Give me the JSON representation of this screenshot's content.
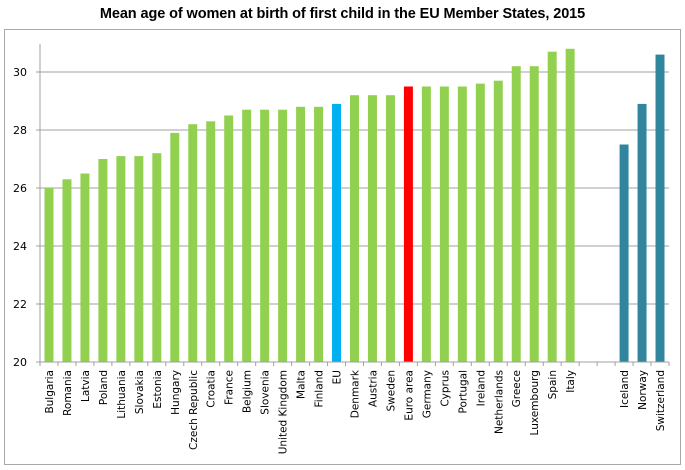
{
  "chart_data": {
    "type": "bar",
    "title": "Mean age of women at birth of first child in the EU Member States, 2015",
    "xlabel": "",
    "ylabel": "",
    "ylim": [
      20,
      31
    ],
    "yticks": [
      20,
      22,
      24,
      26,
      28,
      30
    ],
    "grid": true,
    "legend": "none",
    "colors": {
      "member_state": "#92d050",
      "eu": "#00b0f0",
      "euro_area": "#ff0000",
      "efta": "#31859c",
      "grid": "#a0a0a0",
      "axis": "#a0a0a0"
    },
    "categories": [
      "Bulgaria",
      "Romania",
      "Latvia",
      "Poland",
      "Lithuania",
      "Slovakia",
      "Estonia",
      "Hungary",
      "Czech Republic",
      "Croatia",
      "France",
      "Belgium",
      "Slovenia",
      "United Kingdom",
      "Malta",
      "Finland",
      "EU",
      "Denmark",
      "Austria",
      "Sweden",
      "Euro area",
      "Germany",
      "Cyprus",
      "Portugal",
      "Ireland",
      "Netherlands",
      "Greece",
      "Luxembourg",
      "Spain",
      "Italy",
      "",
      "Iceland",
      "Norway",
      "Switzerland"
    ],
    "values": [
      26.0,
      26.3,
      26.5,
      27.0,
      27.1,
      27.1,
      27.2,
      27.9,
      28.2,
      28.3,
      28.5,
      28.7,
      28.7,
      28.7,
      28.8,
      28.8,
      28.9,
      29.2,
      29.2,
      29.2,
      29.5,
      29.5,
      29.5,
      29.5,
      29.6,
      29.7,
      30.2,
      30.2,
      30.7,
      30.8,
      null,
      27.5,
      28.9,
      30.6
    ],
    "groups": [
      "member_state",
      "member_state",
      "member_state",
      "member_state",
      "member_state",
      "member_state",
      "member_state",
      "member_state",
      "member_state",
      "member_state",
      "member_state",
      "member_state",
      "member_state",
      "member_state",
      "member_state",
      "member_state",
      "eu",
      "member_state",
      "member_state",
      "member_state",
      "euro_area",
      "member_state",
      "member_state",
      "member_state",
      "member_state",
      "member_state",
      "member_state",
      "member_state",
      "member_state",
      "member_state",
      "gap",
      "efta",
      "efta",
      "efta"
    ]
  }
}
